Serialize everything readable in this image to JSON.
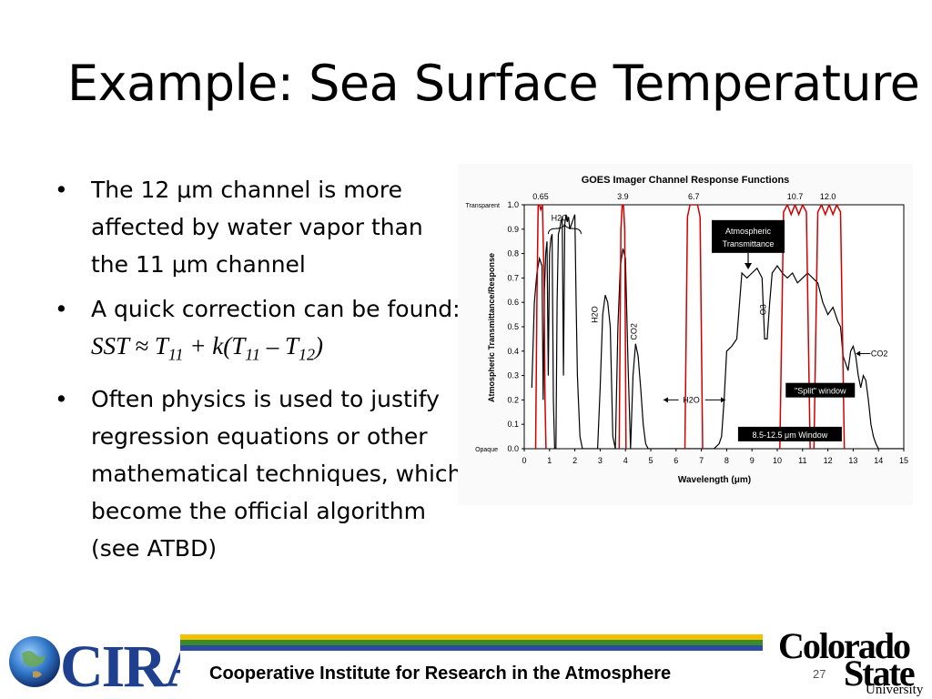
{
  "slide": {
    "title": "Example: Sea Surface Temperature",
    "bullets": [
      "The 12 μm channel is more affected by water vapor than the 11 μm channel",
      "A quick correction can be found:",
      "Often physics is used to justify regression equations or other mathematical techniques, which become the official algorithm (see ATBD)"
    ],
    "formula": {
      "sst": "SST",
      "approx": " ≈ ",
      "t": "T",
      "sub11": "11",
      "plus_k": " + k(",
      "minus": " – ",
      "sub12": "12",
      "close": ")"
    },
    "page_number": "27"
  },
  "footer": {
    "institute": "Cooperative Institute for Research in the Atmosphere",
    "stripe_colors": [
      "#f2c200",
      "#3a8a2e",
      "#2b4aa0"
    ]
  },
  "logos": {
    "cira": "CIRA",
    "csu_line1": "Colorado",
    "csu_line2": "State",
    "csu_line3": "University"
  },
  "chart_data": {
    "type": "line",
    "title": "GOES Imager Channel Response Functions",
    "xlabel": "Wavelength (μm)",
    "ylabel": "Atmospheric Transmittance/Response",
    "xlim": [
      0,
      15
    ],
    "ylim": [
      0,
      1
    ],
    "x_ticks": [
      "0",
      "1",
      "2",
      "3",
      "4",
      "5",
      "6",
      "7",
      "8",
      "9",
      "10",
      "11",
      "12",
      "13",
      "14",
      "15"
    ],
    "y_ticks": [
      "0.0",
      "0.1",
      "0.2",
      "0.3",
      "0.4",
      "0.5",
      "0.6",
      "0.7",
      "0.8",
      "0.9",
      "1.0"
    ],
    "y_side_labels": {
      "top": "Transparent",
      "bottom": "Opaque"
    },
    "channel_labels": [
      {
        "text": "0.65",
        "x": 0.65
      },
      {
        "text": "3.9",
        "x": 3.9
      },
      {
        "text": "6.7",
        "x": 6.7
      },
      {
        "text": "10.7",
        "x": 10.7
      },
      {
        "text": "12.0",
        "x": 12.0
      }
    ],
    "series": [
      {
        "color": "#d00000",
        "bands": [
          {
            "x": [
              0.45,
              0.5,
              0.55,
              0.6,
              0.65,
              0.72,
              0.78,
              0.82,
              0.86
            ],
            "y": [
              0,
              0.6,
              1.0,
              1.0,
              0.98,
              1.0,
              0.7,
              0.2,
              0
            ]
          },
          {
            "x": [
              3.75,
              3.82,
              3.87,
              3.92,
              3.97,
              4.02
            ],
            "y": [
              0,
              0.9,
              1.0,
              1.0,
              0.9,
              0
            ]
          },
          {
            "x": [
              6.35,
              6.45,
              6.55,
              6.7,
              6.85,
              6.95,
              7.05
            ],
            "y": [
              0,
              0.95,
              1.0,
              1.0,
              1.0,
              0.95,
              0
            ]
          },
          {
            "x": [
              10.1,
              10.25,
              10.4,
              10.55,
              10.7,
              10.85,
              11.0,
              11.15,
              11.3
            ],
            "y": [
              0,
              0.97,
              1.0,
              0.96,
              1.0,
              0.96,
              1.0,
              0.97,
              0
            ]
          },
          {
            "x": [
              11.45,
              11.6,
              11.75,
              11.9,
              12.05,
              12.2,
              12.35,
              12.5,
              12.65
            ],
            "y": [
              0,
              0.97,
              1.0,
              0.96,
              1.0,
              0.96,
              1.0,
              0.97,
              0
            ]
          }
        ]
      },
      {
        "color": "#000000",
        "x": [
          0.3,
          0.4,
          0.5,
          0.6,
          0.7,
          0.75,
          0.8,
          0.85,
          0.9,
          0.95,
          1.0,
          1.05,
          1.1,
          1.15,
          1.2,
          1.25,
          1.3,
          1.35,
          1.4,
          1.45,
          1.5,
          1.55,
          1.6,
          1.65,
          1.7,
          1.75,
          1.8,
          1.9,
          2.0,
          2.05,
          2.1,
          2.2,
          2.3,
          2.4,
          2.5,
          2.6,
          2.7,
          2.8,
          2.9,
          3.0,
          3.1,
          3.2,
          3.3,
          3.4,
          3.5,
          3.6,
          3.7,
          3.8,
          3.9,
          4.0,
          4.1,
          4.2,
          4.3,
          4.4,
          4.5,
          4.6,
          4.7,
          4.8,
          4.9,
          5.0,
          5.1,
          5.2,
          5.3,
          5.5,
          6.0,
          6.5,
          7.0,
          7.5,
          7.7,
          7.8,
          7.9,
          8.0,
          8.2,
          8.4,
          8.6,
          8.8,
          9.0,
          9.2,
          9.4,
          9.5,
          9.6,
          9.7,
          9.8,
          10.0,
          10.2,
          10.4,
          10.6,
          10.8,
          11.0,
          11.2,
          11.4,
          11.6,
          11.8,
          12.0,
          12.2,
          12.4,
          12.5,
          12.6,
          12.7,
          12.8,
          12.9,
          13.0,
          13.1,
          13.2,
          13.3,
          13.4,
          13.5,
          13.6,
          13.7,
          13.8,
          13.9,
          14.0,
          14.2,
          14.4,
          14.6,
          14.8,
          15.0
        ],
        "y": [
          0.25,
          0.6,
          0.72,
          0.78,
          0.75,
          0.2,
          0.65,
          0.8,
          0.85,
          0.3,
          0.8,
          0.86,
          0.88,
          0.2,
          0.0,
          0.0,
          0.6,
          0.88,
          0.9,
          0.93,
          0.95,
          0.3,
          0.92,
          0.96,
          0.93,
          0.95,
          0.9,
          0.93,
          0.96,
          0.6,
          0.3,
          0.05,
          0.0,
          0.0,
          0.0,
          0.0,
          0.0,
          0.0,
          0.0,
          0.25,
          0.55,
          0.63,
          0.6,
          0.5,
          0.05,
          0.0,
          0.5,
          0.75,
          0.82,
          0.78,
          0.35,
          0.0,
          0.3,
          0.43,
          0.38,
          0.25,
          0.1,
          0.02,
          0.0,
          0.0,
          0.0,
          0.0,
          0.0,
          0.0,
          0.0,
          0.0,
          0.0,
          0.0,
          0.02,
          0.05,
          0.2,
          0.4,
          0.42,
          0.45,
          0.72,
          0.7,
          0.72,
          0.74,
          0.7,
          0.45,
          0.45,
          0.6,
          0.72,
          0.75,
          0.72,
          0.7,
          0.72,
          0.68,
          0.7,
          0.72,
          0.7,
          0.68,
          0.6,
          0.55,
          0.58,
          0.52,
          0.5,
          0.38,
          0.35,
          0.32,
          0.4,
          0.42,
          0.38,
          0.3,
          0.25,
          0.3,
          0.28,
          0.2,
          0.1,
          0.05,
          0.02,
          0.0,
          0.0,
          0.0,
          0.0,
          0.0,
          0.0
        ]
      }
    ],
    "annotations": [
      {
        "text": "H2O",
        "x": 1.4,
        "y": 0.98
      },
      {
        "text": "H2O",
        "x": 2.9,
        "y": 0.55
      },
      {
        "text": "CO2",
        "x": 4.45,
        "y": 0.48
      },
      {
        "text": "O3",
        "x": 9.55,
        "y": 0.57
      },
      {
        "text": "CO2",
        "x": 13.7,
        "y": 0.39
      },
      {
        "text": "H2O",
        "x": 6.6,
        "y": 0.2
      },
      {
        "text": "Atmospheric Transmittance",
        "x": 8.85,
        "y": 0.87
      },
      {
        "text": "\"Split\" window",
        "x": 11.7,
        "y": 0.24
      },
      {
        "text": "8.5-12.5 μm Window",
        "x": 10.5,
        "y": 0.06
      }
    ]
  }
}
